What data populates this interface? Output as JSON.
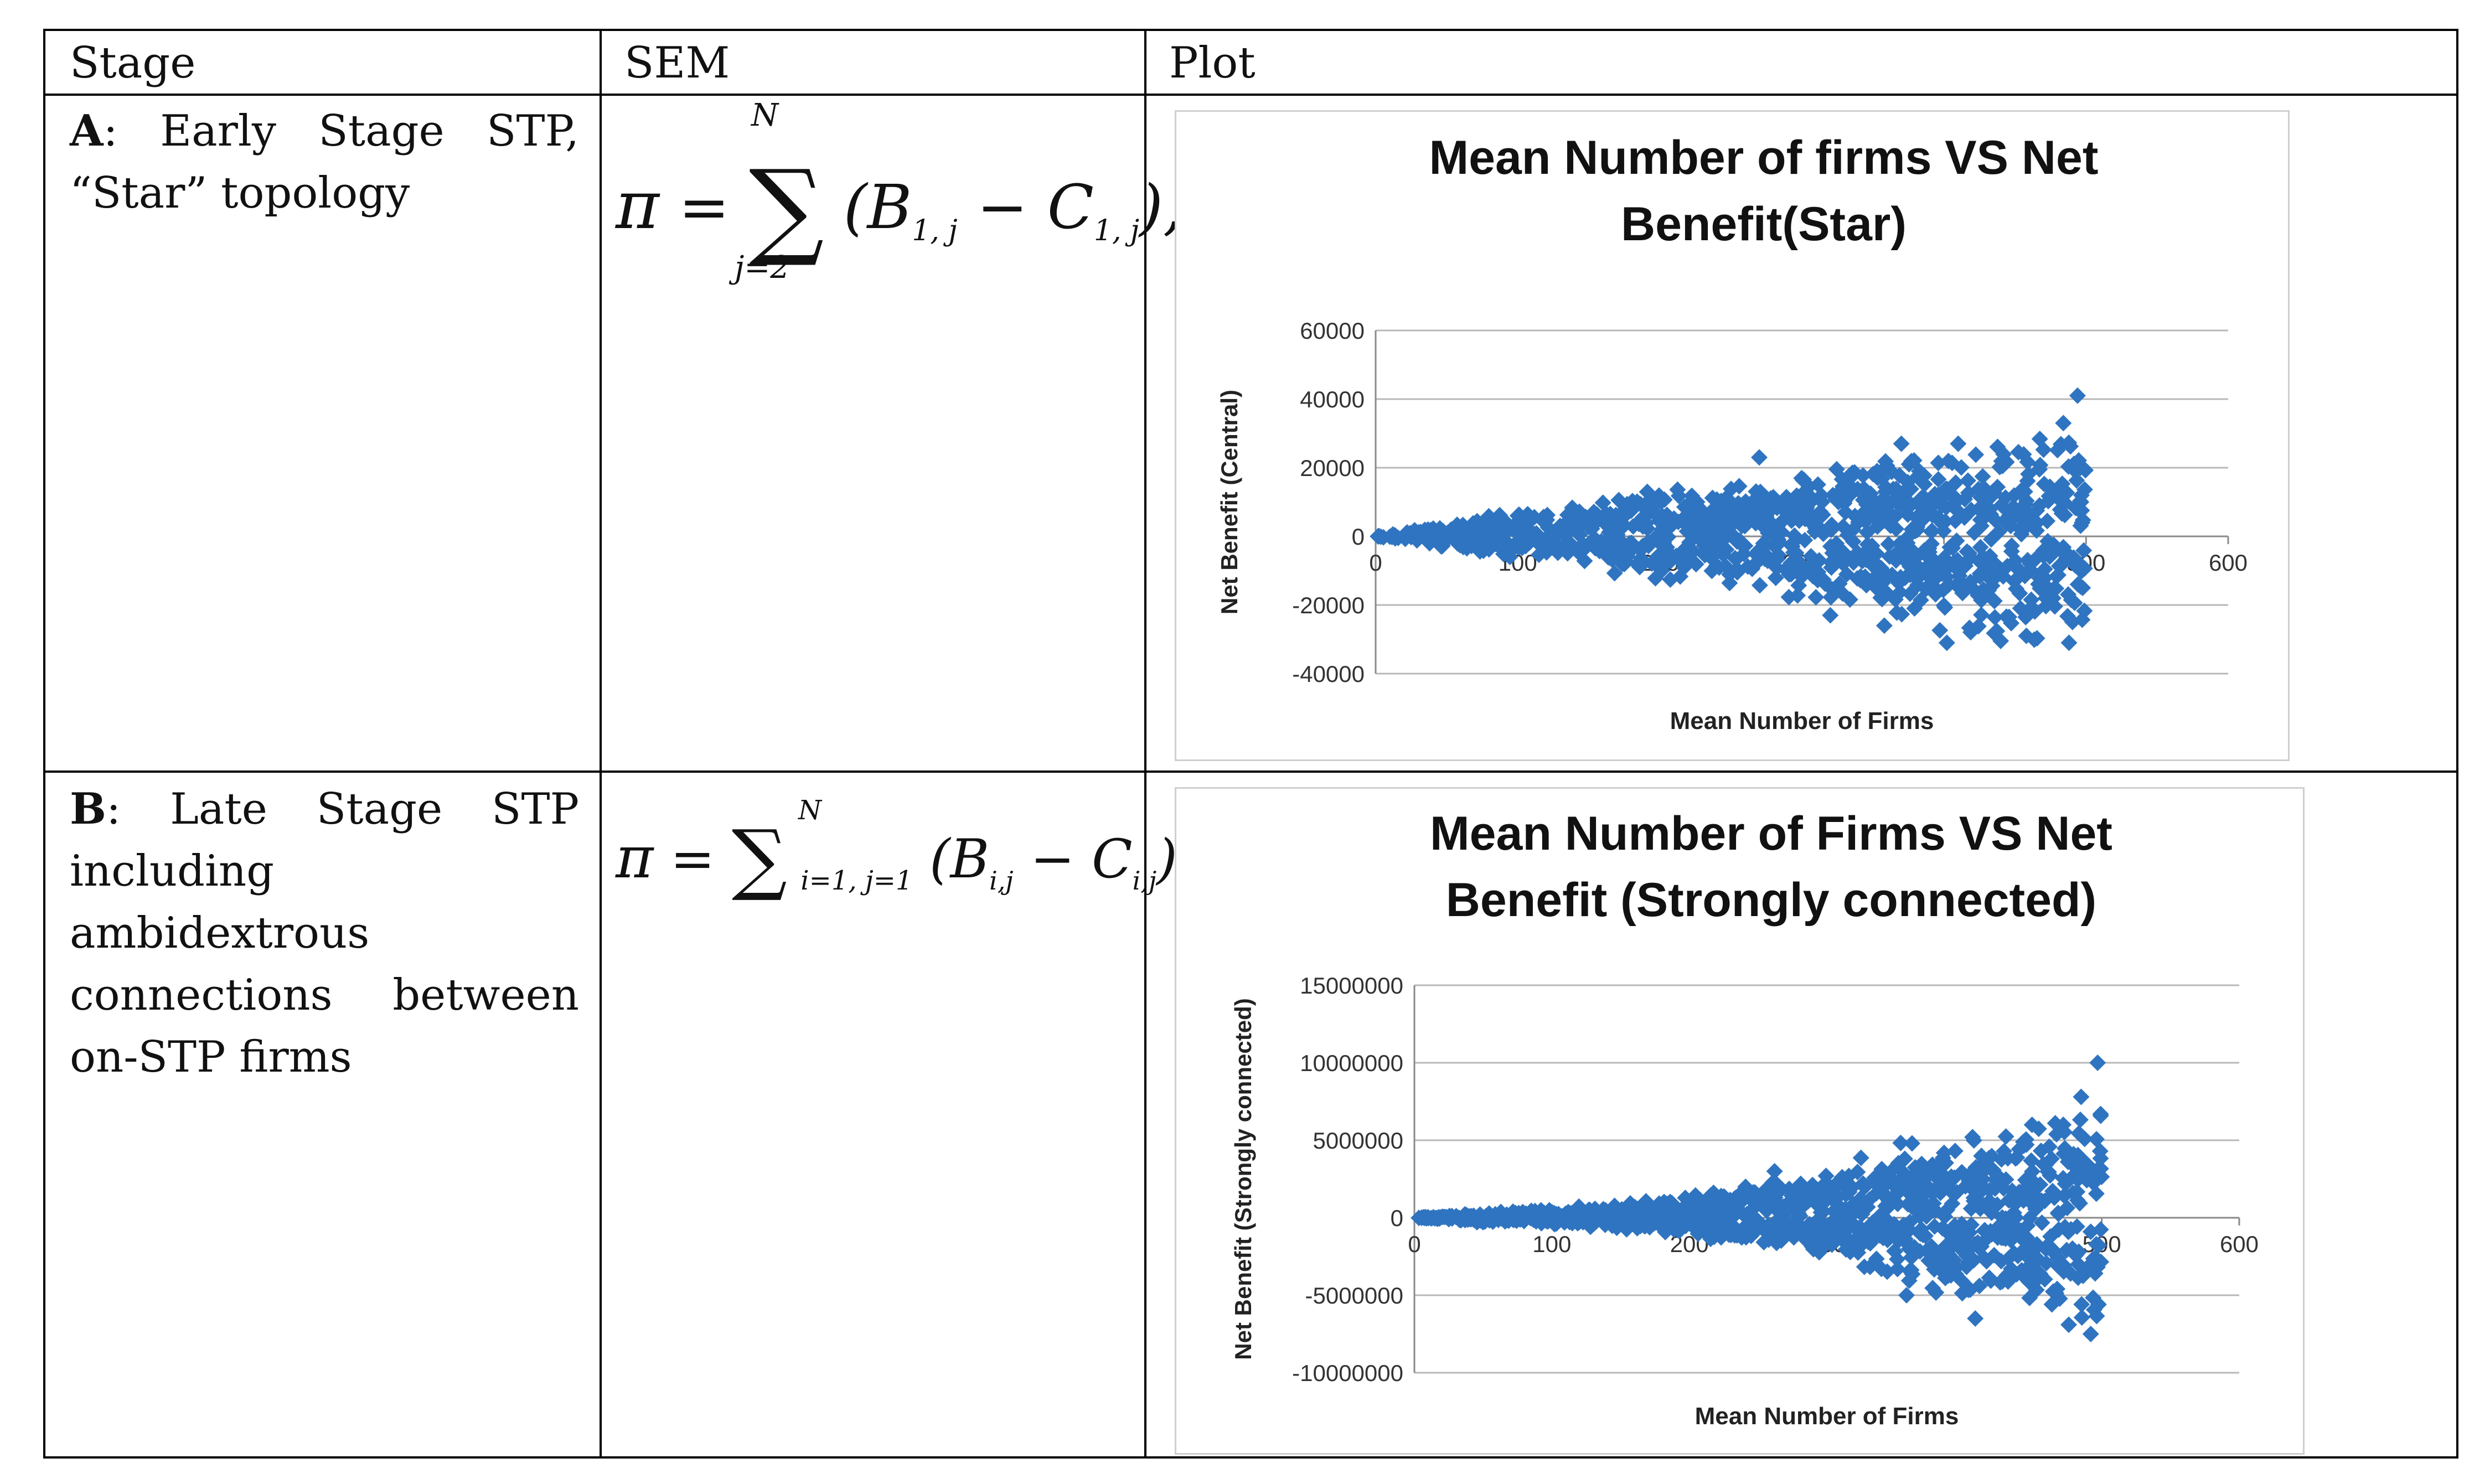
{
  "table": {
    "headers": [
      "Stage",
      "SEM",
      "Plot"
    ],
    "rows": [
      {
        "stage_letter": "A",
        "stage_text": ": Early Stage STP, “Star” topology",
        "formula": {
          "lhs": "π",
          "eq": "=",
          "sum_upper": "N",
          "sum_lower": "j=2",
          "body": "(B",
          "sub1": "1, j",
          "minus": " − C",
          "sub2": "1, j",
          "tail": "),"
        }
      },
      {
        "stage_letter": "B",
        "stage_text": ": Late Stage STP including ambidextrous connections between on-STP firms",
        "formula": {
          "lhs": "π",
          "eq": "=",
          "sum_upper": "N",
          "sum_lower": "i=1, j=1",
          "body": "(B",
          "sub1": "i,j",
          "minus": " − C",
          "sub2": "i,j",
          "tail": ")"
        }
      }
    ]
  },
  "colors": {
    "marker": "#2f74c0",
    "grid": "#b8b8b8",
    "axis": "#8a8a8a"
  },
  "chart_data": [
    {
      "type": "scatter",
      "title": [
        "Mean Number of firms VS Net",
        "Benefit(Star)"
      ],
      "xlabel": "Mean Number of Firms",
      "ylabel": "Net Benefit (Central)",
      "xlim": [
        0,
        600
      ],
      "ylim": [
        -40000,
        60000
      ],
      "xticks": [
        0,
        100,
        200,
        300,
        400,
        500,
        600
      ],
      "yticks": [
        -40000,
        -20000,
        0,
        20000,
        40000,
        60000
      ],
      "xtick_labels": [
        "0",
        "100",
        "200",
        "300",
        "400",
        "500",
        "600"
      ],
      "ytick_labels": [
        "-40000",
        "-20000",
        "0",
        "20000",
        "40000",
        "60000"
      ],
      "grid": true,
      "series": [
        {
          "name": "Net Benefit (Central)",
          "envelope_x": [
            0,
            50,
            100,
            150,
            200,
            250,
            300,
            350,
            400,
            450,
            500
          ],
          "envelope_max": [
            0,
            4000,
            7000,
            11000,
            14000,
            16000,
            20000,
            24000,
            25000,
            27000,
            33000
          ],
          "envelope_min": [
            0,
            -3000,
            -6000,
            -9000,
            -12000,
            -14000,
            -19000,
            -22000,
            -27000,
            -30000,
            -30000
          ],
          "highlights": [
            {
              "x": 270,
              "y": 23000
            },
            {
              "x": 370,
              "y": 27000
            },
            {
              "x": 410,
              "y": 27000
            },
            {
              "x": 484,
              "y": 33000
            },
            {
              "x": 494,
              "y": 41000
            },
            {
              "x": 402,
              "y": -31000
            },
            {
              "x": 458,
              "y": -29000
            },
            {
              "x": 488,
              "y": -31000
            },
            {
              "x": 358,
              "y": -26000
            },
            {
              "x": 320,
              "y": -23000
            }
          ]
        }
      ]
    },
    {
      "type": "scatter",
      "title": [
        "Mean Number of Firms VS Net",
        "Benefit (Strongly connected)"
      ],
      "xlabel": "Mean Number of Firms",
      "ylabel": "Net Benefit (Strongly connected)",
      "xlim": [
        0,
        600
      ],
      "ylim": [
        -10000000,
        15000000
      ],
      "xticks": [
        0,
        100,
        200,
        300,
        400,
        500,
        600
      ],
      "yticks": [
        -10000000,
        -5000000,
        0,
        5000000,
        10000000,
        15000000
      ],
      "xtick_labels": [
        "0",
        "100",
        "200",
        "300",
        "400",
        "500",
        "600"
      ],
      "ytick_labels": [
        "-10000000",
        "-5000000",
        "0",
        "5000000",
        "10000000",
        "15000000"
      ],
      "grid": true,
      "series": [
        {
          "name": "Net Benefit (Strongly connected)",
          "envelope_x": [
            0,
            50,
            100,
            150,
            200,
            250,
            300,
            350,
            400,
            450,
            500
          ],
          "envelope_max": [
            0,
            300000,
            600000,
            900000,
            1500000,
            2500000,
            3000000,
            4500000,
            5000000,
            6000000,
            7500000
          ],
          "envelope_min": [
            0,
            -300000,
            -500000,
            -800000,
            -1200000,
            -1800000,
            -2500000,
            -4000000,
            -5000000,
            -6000000,
            -7000000
          ],
          "highlights": [
            {
              "x": 262,
              "y": 3000000
            },
            {
              "x": 362,
              "y": 4800000
            },
            {
              "x": 406,
              "y": 5200000
            },
            {
              "x": 472,
              "y": 6000000
            },
            {
              "x": 485,
              "y": 7800000
            },
            {
              "x": 497,
              "y": 10000000
            },
            {
              "x": 408,
              "y": -6500000
            },
            {
              "x": 476,
              "y": -6900000
            },
            {
              "x": 492,
              "y": -7500000
            },
            {
              "x": 358,
              "y": -5000000
            }
          ]
        }
      ]
    }
  ]
}
